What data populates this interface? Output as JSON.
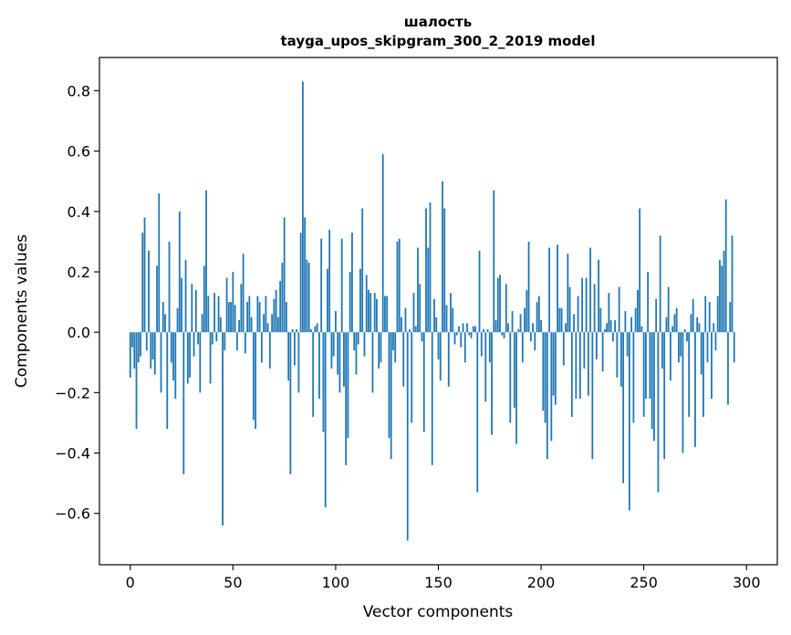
{
  "chart_data": {
    "type": "bar",
    "title": "шалость",
    "subtitle": "tayga_upos_skipgram_300_2_2019 model",
    "xlabel": "Vector components",
    "ylabel": "Components values",
    "xlim": [
      -15,
      315
    ],
    "ylim": [
      -0.77,
      0.91
    ],
    "xticks": [
      0,
      50,
      100,
      150,
      200,
      250,
      300
    ],
    "yticks": [
      -0.6,
      -0.4,
      -0.2,
      0.0,
      0.2,
      0.4,
      0.6,
      0.8
    ],
    "xtick_labels": [
      "0",
      "50",
      "100",
      "150",
      "200",
      "250",
      "300"
    ],
    "ytick_labels": [
      "−0.6",
      "−0.4",
      "−0.2",
      "0.0",
      "0.2",
      "0.4",
      "0.6",
      "0.8"
    ],
    "grid": false,
    "bar_color": "#1f77b4",
    "values": [
      -0.15,
      -0.05,
      -0.12,
      -0.32,
      -0.1,
      -0.08,
      0.33,
      0.38,
      -0.06,
      0.27,
      -0.12,
      -0.09,
      -0.14,
      0.22,
      0.46,
      -0.2,
      0.1,
      0.06,
      -0.32,
      0.3,
      -0.1,
      -0.16,
      -0.22,
      0.08,
      0.4,
      0.18,
      -0.47,
      0.24,
      -0.17,
      -0.15,
      0.16,
      -0.08,
      0.14,
      -0.04,
      -0.2,
      0.06,
      0.22,
      0.47,
      0.12,
      -0.17,
      -0.04,
      0.13,
      -0.03,
      0.12,
      0.05,
      -0.64,
      -0.06,
      0.18,
      0.1,
      0.1,
      0.2,
      0.09,
      -0.06,
      0.04,
      0.16,
      0.26,
      -0.07,
      0.1,
      0.12,
      0.05,
      -0.29,
      -0.32,
      0.12,
      0.1,
      -0.1,
      0.06,
      0.12,
      0.03,
      -0.12,
      0.06,
      0.11,
      0.14,
      0.05,
      0.17,
      0.23,
      0.38,
      0.1,
      -0.16,
      -0.47,
      0.01,
      -0.11,
      0.01,
      -0.2,
      0.33,
      0.83,
      0.38,
      0.24,
      0.23,
      0.01,
      -0.28,
      0.02,
      0.03,
      -0.22,
      0.31,
      -0.33,
      -0.58,
      0.21,
      0.34,
      -0.12,
      -0.08,
      0.07,
      -0.14,
      -0.2,
      0.31,
      -0.18,
      -0.44,
      -0.35,
      0.2,
      0.33,
      -0.06,
      -0.14,
      -0.04,
      0.21,
      0.41,
      -0.08,
      0.19,
      0.14,
      0.13,
      -0.2,
      0.13,
      0.11,
      -0.12,
      -0.1,
      0.59,
      0.12,
      0.12,
      -0.35,
      -0.42,
      -0.06,
      -0.1,
      0.3,
      0.31,
      0.05,
      -0.18,
      0.08,
      -0.69,
      0.01,
      -0.3,
      0.13,
      0.02,
      0.28,
      0.16,
      -0.03,
      -0.33,
      0.41,
      0.28,
      0.43,
      -0.44,
      0.11,
      0.05,
      -0.09,
      -0.16,
      0.5,
      0.41,
      0.09,
      -0.18,
      0.13,
      0.08,
      -0.04,
      -0.01,
      0.02,
      -0.05,
      0.03,
      -0.1,
      0.03,
      -0.01,
      -0.02,
      0.02,
      0.02,
      -0.53,
      0.27,
      -0.08,
      0.01,
      -0.23,
      0.01,
      -0.1,
      -0.34,
      0.47,
      0.04,
      0.18,
      0.19,
      -0.01,
      -0.02,
      0.16,
      0.03,
      -0.3,
      0.07,
      -0.25,
      -0.37,
      0.01,
      0.06,
      -0.1,
      0.08,
      0.14,
      0.3,
      -0.03,
      0.03,
      -0.06,
      0.1,
      0.12,
      0.04,
      -0.26,
      -0.3,
      -0.42,
      0.28,
      -0.36,
      -0.21,
      -0.24,
      0.29,
      0.08,
      0.08,
      -0.11,
      0.03,
      0.26,
      0.15,
      -0.28,
      0.06,
      -0.22,
      0.12,
      -0.22,
      0.18,
      -0.12,
      0.18,
      -0.21,
      0.28,
      -0.42,
      0.16,
      -0.09,
      0.24,
      0.08,
      -0.13,
      0.01,
      0.03,
      0.13,
      0.04,
      -0.03,
      0.04,
      -0.15,
      0.15,
      -0.18,
      -0.5,
      0.07,
      -0.08,
      -0.59,
      0.05,
      -0.3,
      0.08,
      0.14,
      0.41,
      0.02,
      -0.28,
      -0.22,
      0.2,
      -0.22,
      -0.32,
      -0.36,
      0.11,
      -0.53,
      0.32,
      -0.12,
      -0.42,
      0.05,
      0.15,
      -0.16,
      0.02,
      0.06,
      0.08,
      -0.1,
      -0.08,
      -0.4,
      0.01,
      -0.03,
      -0.28,
      0.06,
      0.11,
      -0.38,
      0.05,
      0.03,
      -0.14,
      -0.28,
      0.12,
      -0.1,
      0.1,
      -0.22,
      0.03,
      -0.06,
      0.12,
      0.24,
      0.22,
      0.27,
      0.44,
      -0.24,
      0.1,
      0.32,
      -0.1
    ]
  }
}
